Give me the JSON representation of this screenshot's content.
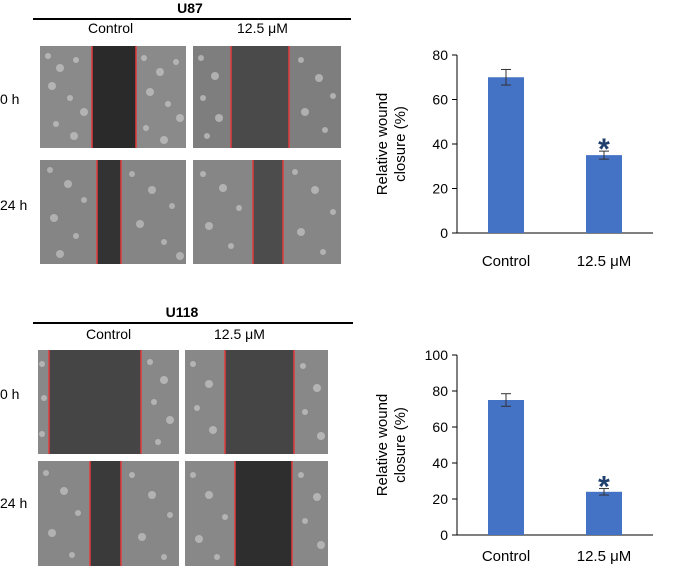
{
  "figure": {
    "panel_a": {
      "cell_line": "U87",
      "col_labels": [
        "Control",
        "12.5 μM"
      ],
      "row_labels": [
        "0 h",
        "24 h"
      ]
    },
    "panel_b": {
      "cell_line": "U118",
      "col_labels": [
        "Control",
        "12.5 μM"
      ],
      "row_labels": [
        "0 h",
        "24 h"
      ]
    }
  },
  "colors": {
    "bar": "#4472c4",
    "scratch_line": "#e23b3b",
    "asterisk": "#1f3f6e"
  },
  "chart_data": [
    {
      "type": "bar",
      "title": "",
      "categories": [
        "Control",
        "12.5 μM"
      ],
      "values": [
        70,
        35
      ],
      "errors": [
        3.5,
        1.8
      ],
      "significance": [
        "",
        "*"
      ],
      "ylabel": "Relative wound closure (%)",
      "ylabel_lines": [
        "Relative wound",
        "closure (%)"
      ],
      "xlabel": "",
      "ylim": [
        0,
        80
      ],
      "yticks": [
        0,
        20,
        40,
        60,
        80
      ]
    },
    {
      "type": "bar",
      "title": "",
      "categories": [
        "Control",
        "12.5 μM"
      ],
      "values": [
        75,
        24
      ],
      "errors": [
        3.5,
        1.8
      ],
      "significance": [
        "",
        "*"
      ],
      "ylabel": "Relative wound closure (%)",
      "ylabel_lines": [
        "Relative wound",
        "closure (%)"
      ],
      "xlabel": "",
      "ylim": [
        0,
        100
      ],
      "yticks": [
        0,
        20,
        40,
        60,
        80,
        100
      ]
    }
  ]
}
